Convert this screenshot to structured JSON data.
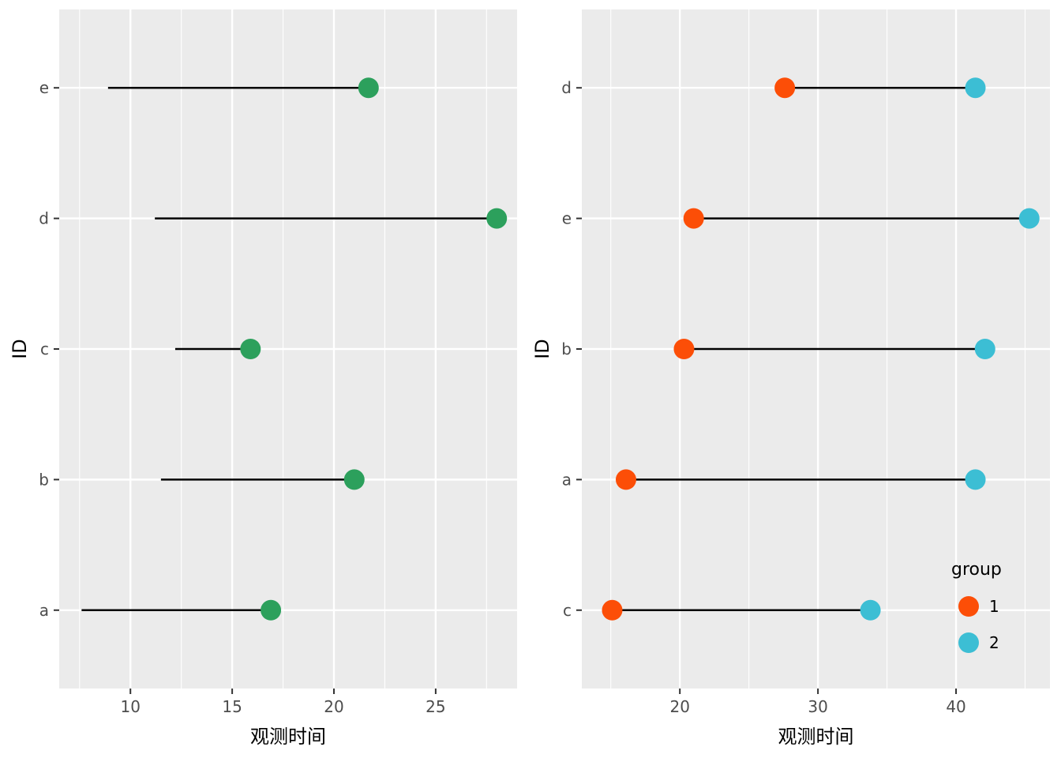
{
  "figure": {
    "background": "#FFFFFF",
    "panel_background": "#EBEBEB",
    "grid_color": "#FFFFFF",
    "segment_color": "#000000",
    "tick_mark_color": "#333333",
    "tick_label_color": "#4D4D4D",
    "axis_title_color": "#000000"
  },
  "chart_data": [
    {
      "type": "scatter",
      "subtype": "segment-lollipop",
      "panel": "left",
      "title": "",
      "xlabel": "观测时间",
      "ylabel": "ID",
      "x_major_ticks": [
        10,
        15,
        20,
        25
      ],
      "x_minor_ticks": [
        7.5,
        12.5,
        17.5,
        22.5,
        27.5
      ],
      "xlim": [
        6.5,
        29.0
      ],
      "categories_bottom_to_top": [
        "a",
        "b",
        "c",
        "d",
        "e"
      ],
      "dot_color": "#2CA05C",
      "dot_position": "end",
      "series": [
        {
          "id": "a",
          "start": 7.6,
          "end": 16.9
        },
        {
          "id": "b",
          "start": 11.5,
          "end": 21.0
        },
        {
          "id": "c",
          "start": 12.2,
          "end": 15.9
        },
        {
          "id": "d",
          "start": 11.2,
          "end": 28.0
        },
        {
          "id": "e",
          "start": 8.9,
          "end": 21.7
        }
      ],
      "legend": null
    },
    {
      "type": "scatter",
      "subtype": "dumbbell-two-groups",
      "panel": "right",
      "title": "",
      "xlabel": "观测时间",
      "ylabel": "ID",
      "x_major_ticks": [
        20,
        30,
        40
      ],
      "x_minor_ticks": [
        15,
        25,
        35,
        45
      ],
      "xlim": [
        12.9,
        46.8
      ],
      "categories_bottom_to_top": [
        "c",
        "a",
        "b",
        "e",
        "d"
      ],
      "group_colors": {
        "1": "#FC4E07",
        "2": "#3CBED4"
      },
      "series": [
        {
          "id": "c",
          "group1": 15.1,
          "group2": 33.8
        },
        {
          "id": "a",
          "group1": 16.1,
          "group2": 41.4
        },
        {
          "id": "b",
          "group1": 20.3,
          "group2": 42.1
        },
        {
          "id": "e",
          "group1": 21.0,
          "group2": 45.3
        },
        {
          "id": "d",
          "group1": 27.6,
          "group2": 41.4
        }
      ],
      "legend": {
        "title": "group",
        "entries": [
          {
            "label": "1",
            "color": "#FC4E07"
          },
          {
            "label": "2",
            "color": "#3CBED4"
          }
        ]
      }
    }
  ]
}
